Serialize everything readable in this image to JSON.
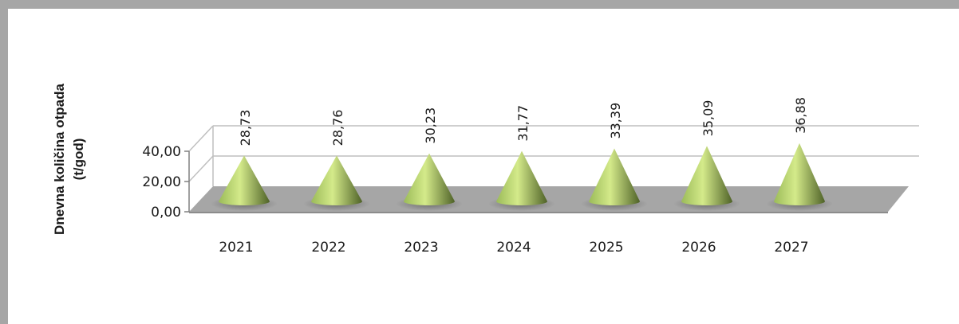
{
  "chart_data": {
    "type": "bar",
    "shape": "cone-3d",
    "categories": [
      "2021",
      "2022",
      "2023",
      "2024",
      "2025",
      "2026",
      "2027"
    ],
    "values": [
      28.73,
      28.76,
      30.23,
      31.77,
      33.39,
      35.09,
      36.88
    ],
    "value_labels": [
      "28,73",
      "28,76",
      "30,23",
      "31,77",
      "33,39",
      "35,09",
      "36,88"
    ],
    "ylabel_line1": "Dnevna količina otpada",
    "ylabel_line2": "(t/god)",
    "ylim": [
      0,
      40
    ],
    "yticks": [
      {
        "value": 0,
        "label": "0,00"
      },
      {
        "value": 20,
        "label": "20,00"
      },
      {
        "value": 40,
        "label": "40,00"
      }
    ],
    "grid": true,
    "legend": "none"
  },
  "colors": {
    "cone_light": "#d4ea8a",
    "cone_mid": "#9bbb59",
    "cone_dark": "#4f6228",
    "floor": "#a6a6a6",
    "gridline": "#bfbfbf",
    "frame": "#a6a6a6"
  }
}
